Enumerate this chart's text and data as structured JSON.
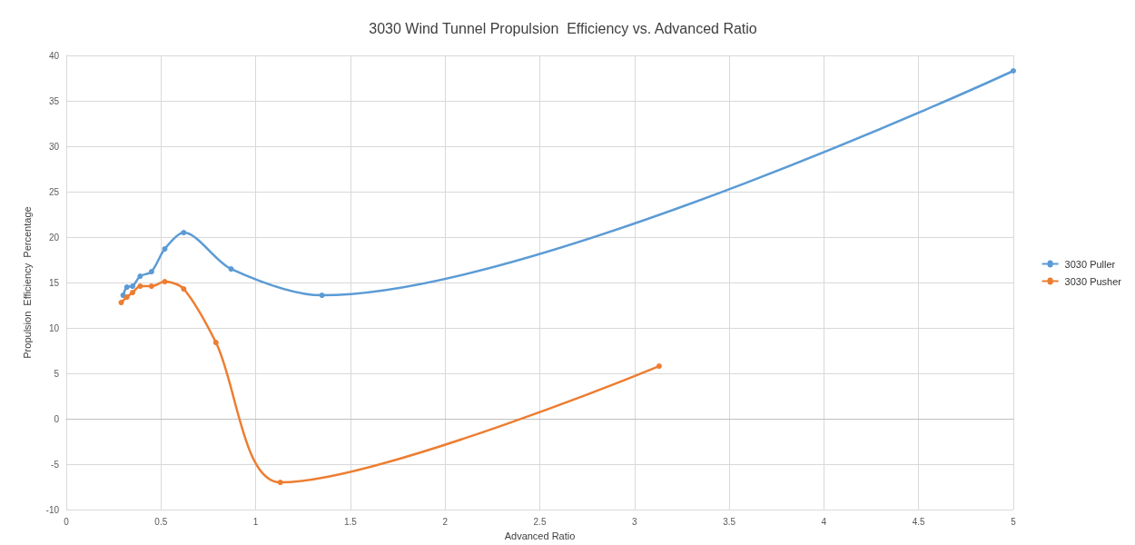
{
  "chart_data": {
    "type": "line",
    "title": "3030 Wind Tunnel Propulsion  Efficiency vs. Advanced Ratio",
    "xlabel": "Advanced Ratio",
    "ylabel": "Propulsion  Efficiency  Percentage",
    "xlim": [
      0,
      5
    ],
    "xticks": [
      0,
      0.5,
      1,
      1.5,
      2,
      2.5,
      3,
      3.5,
      4,
      4.5,
      5
    ],
    "ylim": [
      -10,
      40
    ],
    "yticks": [
      -10,
      -5,
      0,
      5,
      10,
      15,
      20,
      25,
      30,
      35,
      40
    ],
    "grid": true,
    "legend": "right",
    "marker": "circle",
    "line_style": "solid",
    "series": [
      {
        "name": "3030 Puller",
        "color": "#5b9bd5",
        "x": [
          0.3,
          0.32,
          0.35,
          0.39,
          0.45,
          0.52,
          0.62,
          0.87,
          1.35,
          5
        ],
        "values": [
          13.6,
          14.5,
          14.6,
          15.7,
          16.2,
          18.7,
          20.5,
          16.5,
          13.6,
          38.3
        ]
      },
      {
        "name": "3030 Pusher",
        "color": "#ed7d31",
        "x": [
          0.29,
          0.32,
          0.35,
          0.39,
          0.45,
          0.52,
          0.62,
          0.79,
          1.13,
          3.13
        ],
        "values": [
          12.8,
          13.4,
          13.9,
          14.6,
          14.6,
          15.1,
          14.3,
          8.4,
          -7.0,
          5.8
        ]
      }
    ]
  }
}
